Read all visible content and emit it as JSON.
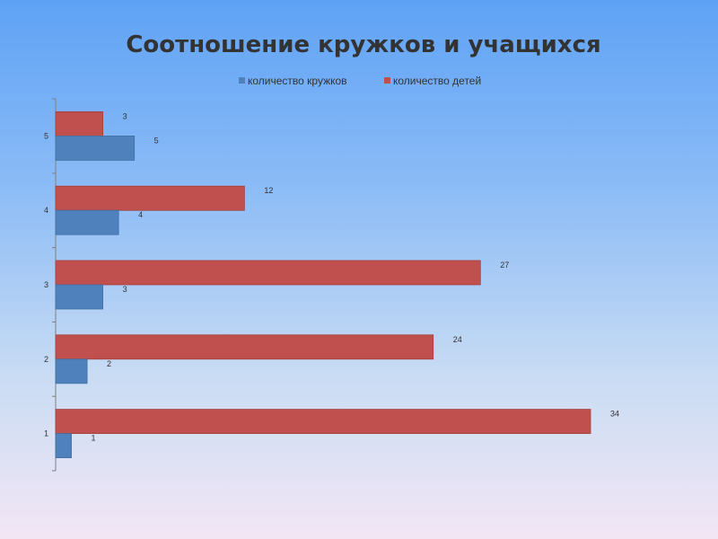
{
  "chart_data": {
    "type": "bar",
    "orientation": "horizontal",
    "title": "Соотношение кружков и учащихся",
    "categories": [
      "1",
      "2",
      "3",
      "4",
      "5"
    ],
    "series": [
      {
        "name": "количество кружков",
        "color": "#4f81bd",
        "values": [
          1,
          2,
          3,
          4,
          5
        ]
      },
      {
        "name": "количество детей",
        "color": "#c0504d",
        "values": [
          34,
          24,
          27,
          12,
          3
        ]
      }
    ],
    "xlim": [
      0,
      34
    ],
    "grid": false,
    "legend": "top-center"
  }
}
